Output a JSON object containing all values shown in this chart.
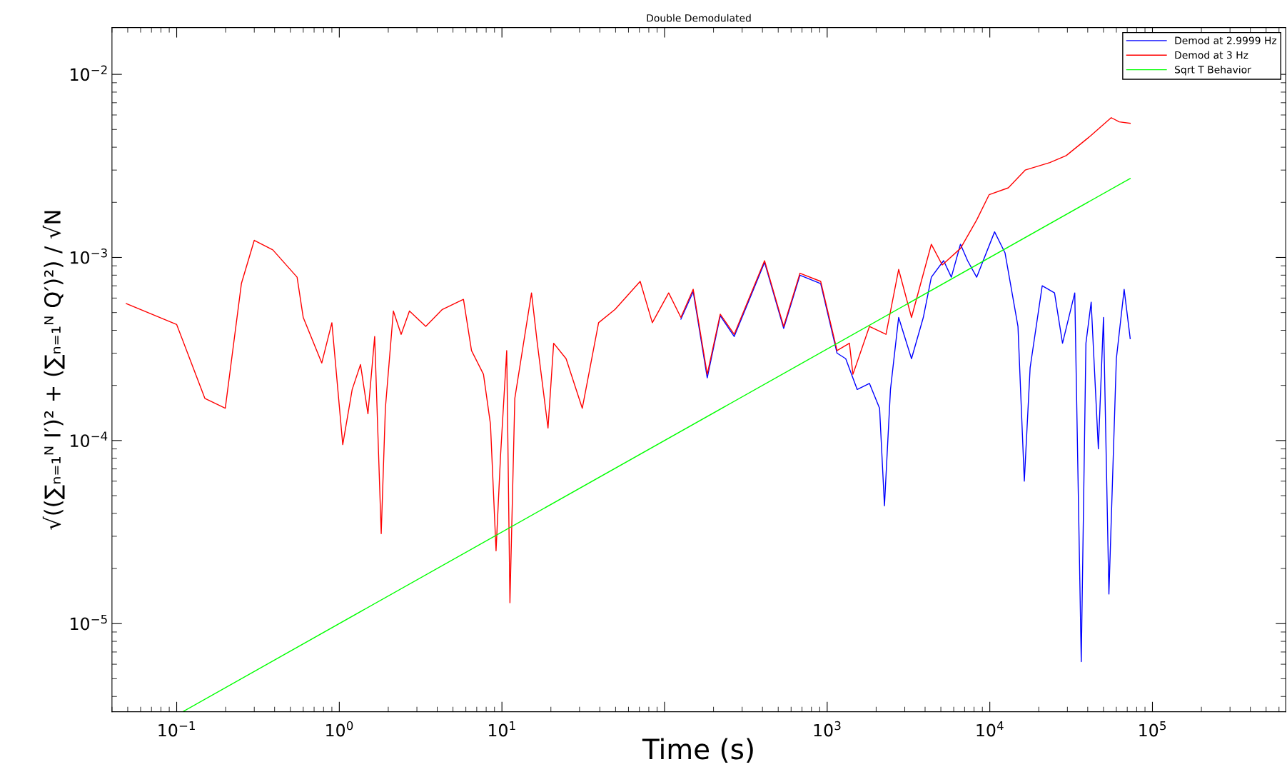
{
  "chart_data": {
    "type": "line",
    "title": "Double Demodulated",
    "xlabel": "Time (s)",
    "ylabel": "√((∑ₙ₌₁ᴺ I′)² + (∑ₙ₌₁ᴺ Q′)²) / √N",
    "log": "xy",
    "grid": false,
    "legend": "top right",
    "marker": "none",
    "line_style": "solid",
    "xlim": [
      0.04,
      660000
    ],
    "ylim": [
      3.3e-06,
      0.018
    ],
    "xticks": [
      {
        "value": 0.1,
        "label": "10$^{−1}$"
      },
      {
        "value": 1,
        "label": "10$^{0}$"
      },
      {
        "value": 10,
        "label": "10$^{1}$"
      },
      {
        "value": 100,
        "label": null
      },
      {
        "value": 1000,
        "label": "10$^{3}$"
      },
      {
        "value": 10000,
        "label": "10$^{4}$"
      },
      {
        "value": 100000,
        "label": "10$^{5}$"
      }
    ],
    "yticks": [
      {
        "value": 1e-05,
        "label": "10$^{−5}$"
      },
      {
        "value": 0.0001,
        "label": "10$^{−4}$"
      },
      {
        "value": 0.001,
        "label": "10$^{−3}$"
      },
      {
        "value": 0.01,
        "label": "10$^{−2}$"
      }
    ],
    "series": [
      {
        "name": "Demod at 2.9999 Hz",
        "color": "#0000ff",
        "x": [
          126,
          150,
          183,
          220,
          268,
          412,
          540,
          680,
          912,
          1150,
          1300,
          1530,
          1820,
          2100,
          2250,
          2450,
          2750,
          3300,
          3900,
          4370,
          5200,
          5800,
          6600,
          7300,
          8300,
          10700,
          12400,
          14900,
          16300,
          17700,
          21000,
          25000,
          28000,
          33300,
          36500,
          39000,
          42000,
          46500,
          50000,
          54000,
          60000,
          67000,
          73000
        ],
        "values": [
          0.00046,
          0.00065,
          0.00022,
          0.00048,
          0.00037,
          0.00094,
          0.00041,
          0.0008,
          0.00072,
          0.0003,
          0.00028,
          0.00019,
          0.000205,
          0.00015,
          4.4e-05,
          0.00019,
          0.00047,
          0.00028,
          0.00047,
          0.00078,
          0.00096,
          0.00078,
          0.00118,
          0.00096,
          0.00078,
          0.00138,
          0.00106,
          0.00042,
          6e-05,
          0.00025,
          0.0007,
          0.00064,
          0.00034,
          0.00064,
          6.2e-06,
          0.00034,
          0.00057,
          9e-05,
          0.00047,
          1.45e-05,
          0.00028,
          0.00067,
          0.00036
        ]
      },
      {
        "name": "Demod at 3 Hz",
        "color": "#ff0000",
        "x": [
          0.049,
          0.1,
          0.149,
          0.199,
          0.25,
          0.3,
          0.39,
          0.55,
          0.6,
          0.78,
          0.9,
          1.05,
          1.2,
          1.35,
          1.5,
          1.65,
          1.81,
          1.92,
          2.15,
          2.4,
          2.7,
          3.4,
          4.3,
          5.8,
          6.5,
          7.7,
          8.5,
          9.2,
          9.8,
          10.7,
          11.2,
          12.0,
          15.2,
          16.5,
          19.2,
          20.8,
          24.8,
          31.2,
          39.3,
          49.6,
          70.8,
          84.1,
          106,
          126,
          150,
          183,
          220,
          268,
          412,
          540,
          680,
          912,
          1150,
          1370,
          1440,
          1820,
          2300,
          2750,
          3300,
          4370,
          5100,
          6600,
          8300,
          9900,
          13000,
          16500,
          23400,
          29500,
          41500,
          55800,
          62500,
          73000
        ],
        "values": [
          0.00056,
          0.00043,
          0.00017,
          0.00015,
          0.00072,
          0.00124,
          0.0011,
          0.00078,
          0.00047,
          0.000265,
          0.00044,
          9.5e-05,
          0.00019,
          0.00026,
          0.00014,
          0.00037,
          3.1e-05,
          0.00015,
          0.00051,
          0.00038,
          0.00051,
          0.00042,
          0.00052,
          0.00059,
          0.00031,
          0.00023,
          0.000123,
          2.5e-05,
          8.2e-05,
          0.00031,
          1.3e-05,
          0.00017,
          0.00064,
          0.00034,
          0.000117,
          0.00034,
          0.00028,
          0.00015,
          0.00044,
          0.00052,
          0.00074,
          0.00044,
          0.00064,
          0.00047,
          0.00067,
          0.00023,
          0.00049,
          0.00038,
          0.00096,
          0.00042,
          0.00082,
          0.00074,
          0.00031,
          0.00034,
          0.00023,
          0.00042,
          0.00038,
          0.00086,
          0.00047,
          0.00118,
          0.00091,
          0.00112,
          0.0016,
          0.0022,
          0.0024,
          0.003,
          0.0033,
          0.0036,
          0.0046,
          0.0058,
          0.0055,
          0.0054
        ]
      },
      {
        "name": "Sqrt T Behavior",
        "color": "#00ff00",
        "x": [
          0.11,
          73000
        ],
        "values": [
          3.32e-06,
          0.0027
        ]
      }
    ]
  }
}
